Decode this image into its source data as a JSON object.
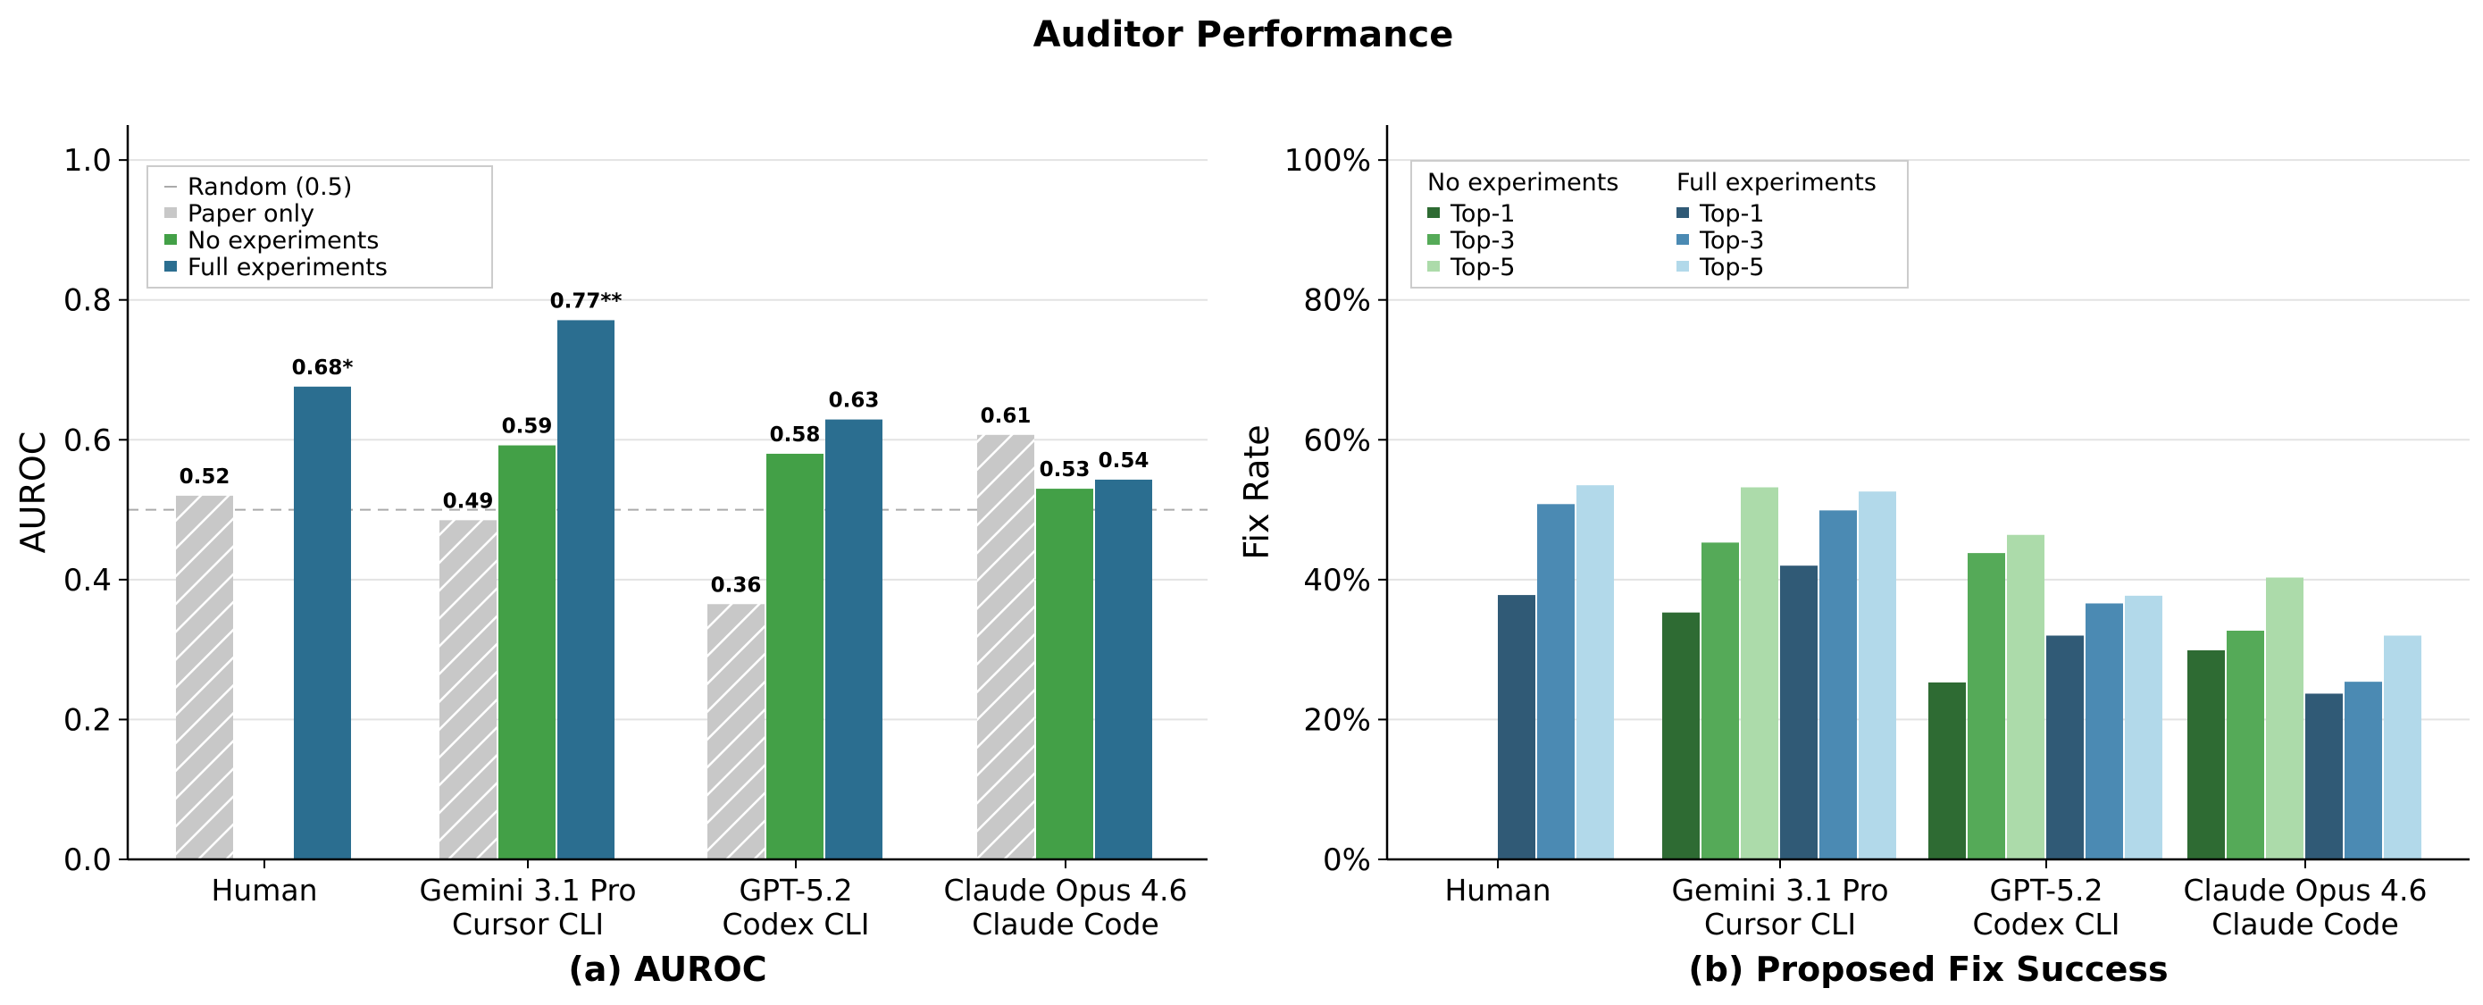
{
  "figure_title": "Auditor Performance",
  "chart_data": [
    {
      "type": "bar",
      "caption": "(a) AUROC",
      "ylabel": "AUROC",
      "xlabel": "",
      "ylim": [
        0,
        1.05
      ],
      "yticks": [
        0.0,
        0.2,
        0.4,
        0.6,
        0.8,
        1.0
      ],
      "ytick_labels": [
        "0.0",
        "0.2",
        "0.4",
        "0.6",
        "0.8",
        "1.0"
      ],
      "grid": "horizontal",
      "categories": [
        [
          "Human"
        ],
        [
          "Gemini 3.1 Pro",
          "Cursor CLI"
        ],
        [
          "GPT-5.2",
          "Codex CLI"
        ],
        [
          "Claude Opus 4.6",
          "Claude Code"
        ]
      ],
      "series": [
        {
          "name": "Paper only",
          "color": "#c8c8c8",
          "hatch": true,
          "values": [
            0.52,
            0.485,
            0.365,
            0.607
          ],
          "labels": [
            "0.52",
            "0.49",
            "0.36",
            "0.61"
          ]
        },
        {
          "name": "No experiments",
          "color": "#43a047",
          "values": [
            null,
            0.592,
            0.58,
            0.53
          ],
          "labels": [
            null,
            "0.59",
            "0.58",
            "0.53"
          ]
        },
        {
          "name": "Full experiments",
          "color": "#2b6e90",
          "values": [
            0.676,
            0.771,
            0.629,
            0.543
          ],
          "labels": [
            "0.68*",
            "0.77**",
            "0.63",
            "0.54"
          ]
        }
      ],
      "reference_line": {
        "name": "Random (0.5)",
        "value": 0.5,
        "color": "#aaaaaa",
        "style": "dashed"
      },
      "legend": {
        "placement": "top-left",
        "entries": [
          "Random (0.5)",
          "Paper only",
          "No experiments",
          "Full experiments"
        ]
      }
    },
    {
      "type": "bar",
      "caption": "(b) Proposed Fix Success",
      "ylabel": "Fix Rate",
      "xlabel": "",
      "ylim": [
        0,
        105
      ],
      "yticks": [
        0,
        20,
        40,
        60,
        80,
        100
      ],
      "ytick_labels": [
        "0%",
        "20%",
        "40%",
        "60%",
        "80%",
        "100%"
      ],
      "grid": "horizontal",
      "categories": [
        [
          "Human"
        ],
        [
          "Gemini 3.1 Pro",
          "Cursor CLI"
        ],
        [
          "GPT-5.2",
          "Codex CLI"
        ],
        [
          "Claude Opus 4.6",
          "Claude Code"
        ]
      ],
      "groups": [
        {
          "title": "No experiments",
          "series": [
            {
              "name": "Top-1",
              "color": "#2e6b33",
              "values": [
                null,
                35.3,
                25.3,
                29.9
              ]
            },
            {
              "name": "Top-3",
              "color": "#55aa58",
              "values": [
                null,
                45.3,
                43.8,
                32.7
              ]
            },
            {
              "name": "Top-5",
              "color": "#acdbaa",
              "values": [
                null,
                53.2,
                46.4,
                40.3
              ]
            }
          ]
        },
        {
          "title": "Full experiments",
          "series": [
            {
              "name": "Top-1",
              "color": "#305a76",
              "values": [
                37.8,
                42.0,
                32.0,
                23.7
              ]
            },
            {
              "name": "Top-3",
              "color": "#4b8ab3",
              "values": [
                50.8,
                49.9,
                36.6,
                25.4
              ]
            },
            {
              "name": "Top-5",
              "color": "#b2d9ea",
              "values": [
                53.5,
                52.6,
                37.7,
                32.0
              ]
            }
          ]
        }
      ],
      "legend": {
        "placement": "top-left",
        "columns": [
          "No experiments",
          "Full experiments"
        ]
      }
    }
  ]
}
